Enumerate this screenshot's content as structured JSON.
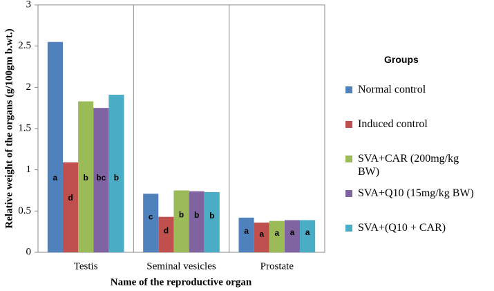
{
  "chart_data": {
    "type": "bar",
    "y_label": "Relative weight of the organs (g/100gm b.wt.)",
    "x_label": "Name of the reproductive organ",
    "legend_title": "Groups",
    "categories": [
      "Testis",
      "Seminal vesicles",
      "Prostate"
    ],
    "series": [
      {
        "name": "Normal control",
        "color": "#4f81bd",
        "values": [
          2.55,
          0.71,
          0.42
        ],
        "letters": [
          "a",
          "c",
          "a"
        ]
      },
      {
        "name": "Induced control",
        "color": "#c0504d",
        "values": [
          1.09,
          0.43,
          0.36
        ],
        "letters": [
          "d",
          "d",
          "a"
        ]
      },
      {
        "name": "SVA+CAR (200mg/kg BW)",
        "color": "#9bbb59",
        "values": [
          1.83,
          0.75,
          0.38
        ],
        "letters": [
          "b",
          "b",
          "a"
        ]
      },
      {
        "name": "SVA+Q10 (15mg/kg BW)",
        "color": "#8064a2",
        "values": [
          1.75,
          0.74,
          0.39
        ],
        "letters": [
          "bc",
          "b",
          "a"
        ]
      },
      {
        "name": "SVA+(Q10 + CAR)",
        "color": "#4bacc6",
        "values": [
          1.91,
          0.73,
          0.39
        ],
        "letters": [
          "b",
          "b",
          "a"
        ]
      }
    ],
    "ylim": [
      0,
      3
    ],
    "yticks": [
      0,
      0.5,
      1,
      1.5,
      2,
      2.5,
      3
    ],
    "legend_position": "right"
  }
}
